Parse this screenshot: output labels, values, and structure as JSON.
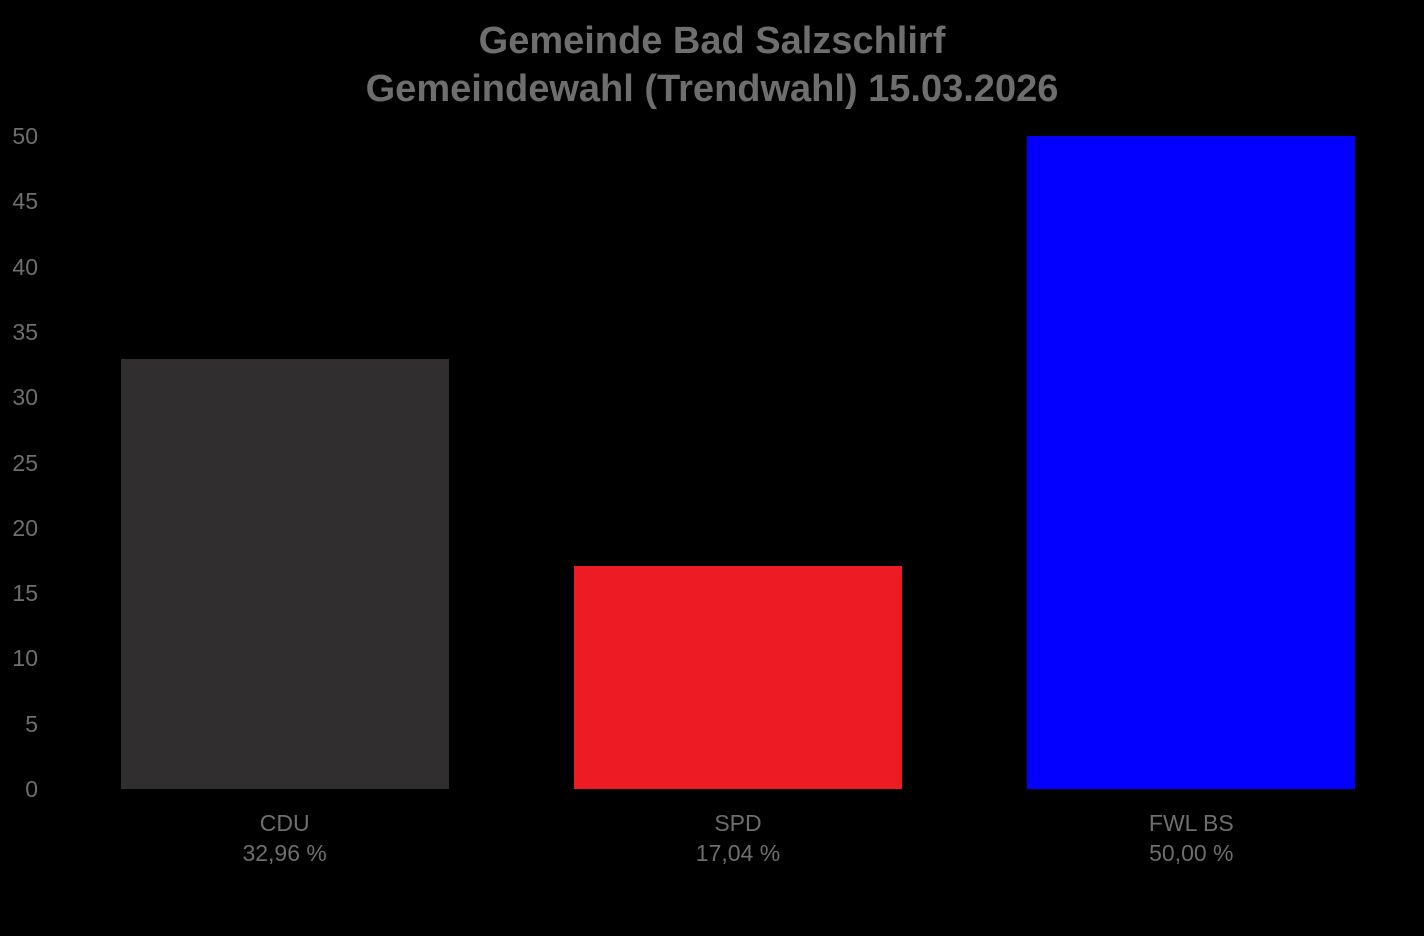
{
  "title": {
    "line1": "Gemeinde Bad Salzschlirf",
    "line2": "Gemeindewahl (Trendwahl) 15.03.2026"
  },
  "colors": {
    "background": "#000000",
    "title_text": "#6e6e6e",
    "axis_text": "#6e6e6e"
  },
  "chart_data": {
    "type": "bar",
    "title": "Gemeinde Bad Salzschlirf",
    "subtitle": "Gemeindewahl (Trendwahl) 15.03.2026",
    "categories": [
      "CDU",
      "SPD",
      "FWL BS"
    ],
    "values": [
      32.96,
      17.04,
      50.0
    ],
    "value_labels": [
      "32,96 %",
      "17,04 %",
      "50,00 %"
    ],
    "bar_colors": [
      "#302e2f",
      "#ed1c24",
      "#0400ff"
    ],
    "xlabel": "",
    "ylabel": "",
    "ylim": [
      0,
      50
    ],
    "yticks": [
      0,
      5,
      10,
      15,
      20,
      25,
      30,
      35,
      40,
      45,
      50
    ],
    "grid": false,
    "legend": false
  }
}
